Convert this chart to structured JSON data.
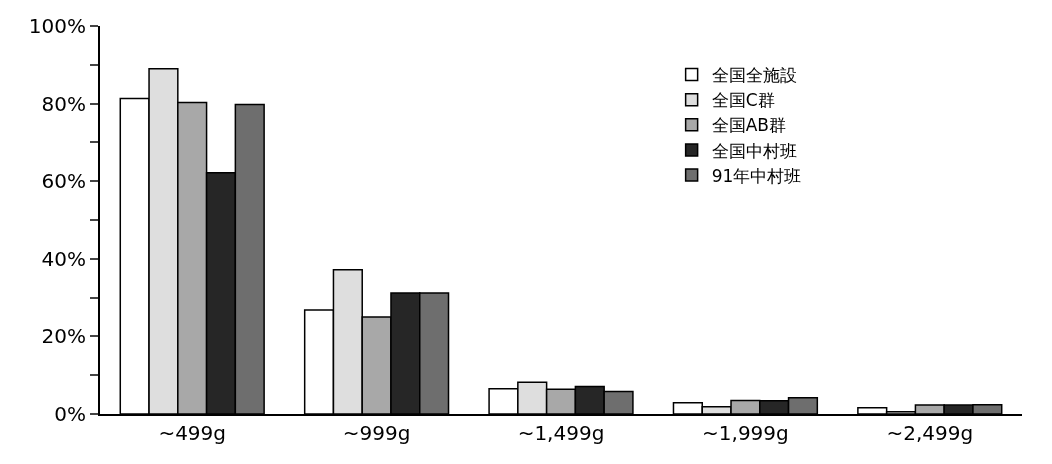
{
  "chart_data": {
    "type": "bar",
    "categories": [
      "~499g",
      "~999g",
      "~1,499g",
      "~1,999g",
      "~2,499g"
    ],
    "series": [
      {
        "name": "全国全施設",
        "color": "#ffffff",
        "values": [
          81.3,
          26.8,
          6.5,
          2.9,
          1.6
        ]
      },
      {
        "name": "全国C群",
        "color": "#dedede",
        "values": [
          89.0,
          37.2,
          8.2,
          1.9,
          0.6
        ]
      },
      {
        "name": "全国AB群",
        "color": "#a8a8a8",
        "values": [
          80.3,
          25.0,
          6.4,
          3.5,
          2.3
        ]
      },
      {
        "name": "全国中村班",
        "color": "#262626",
        "values": [
          62.2,
          31.2,
          7.1,
          3.4,
          2.3
        ]
      },
      {
        "name": "91年中村班",
        "color": "#6e6e6e",
        "values": [
          79.8,
          31.2,
          5.8,
          4.2,
          2.4
        ]
      }
    ],
    "ylim": [
      0,
      100
    ],
    "yticks": [
      {
        "value": 0,
        "label": "0%"
      },
      {
        "value": 10,
        "label": null
      },
      {
        "value": 20,
        "label": "20%"
      },
      {
        "value": 30,
        "label": null
      },
      {
        "value": 40,
        "label": "40%"
      },
      {
        "value": 50,
        "label": null
      },
      {
        "value": 60,
        "label": "60%"
      },
      {
        "value": 70,
        "label": null
      },
      {
        "value": 80,
        "label": "80%"
      },
      {
        "value": 90,
        "label": null
      },
      {
        "value": 100,
        "label": "100%"
      }
    ],
    "legend": "top right"
  }
}
